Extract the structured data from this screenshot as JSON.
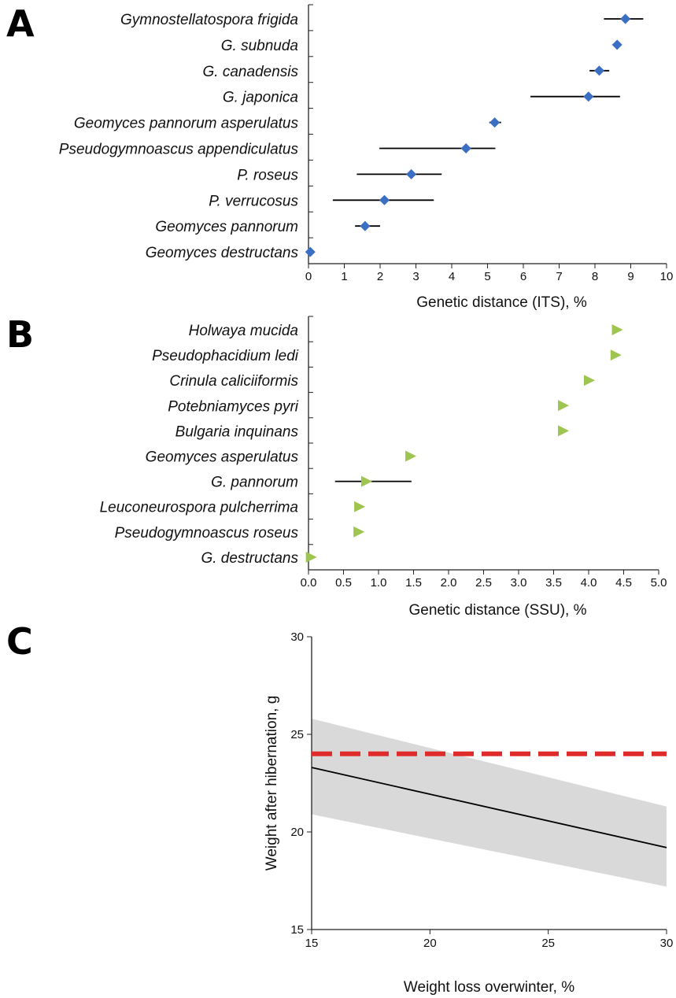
{
  "chart_data": [
    {
      "panel": "A",
      "type": "scatter",
      "marker": "diamond",
      "color": "#3a6fc4",
      "xlabel": "Genetic distance (ITS), %",
      "xlim": [
        0,
        10
      ],
      "xticks": [
        "0",
        "1",
        "2",
        "3",
        "4",
        "5",
        "6",
        "7",
        "8",
        "9",
        "10"
      ],
      "categories": [
        "Gymnostellatospora frigida",
        "G. subnuda",
        "G. canadensis",
        "G. japonica",
        "Geomyces pannorum asperulatus",
        "Pseudogymnoascus appendiculatus",
        "P. roseus",
        "P. verrucosus",
        "Geomyces pannorum",
        "Geomyces destructans"
      ],
      "values": [
        8.85,
        8.62,
        8.12,
        7.82,
        5.2,
        4.4,
        2.87,
        2.12,
        1.58,
        0.05
      ],
      "error_low": [
        8.25,
        null,
        7.85,
        6.2,
        5.05,
        1.98,
        1.35,
        0.68,
        1.3,
        null
      ],
      "error_high": [
        9.35,
        null,
        8.4,
        8.7,
        5.38,
        5.22,
        3.72,
        3.5,
        2.0,
        null
      ]
    },
    {
      "panel": "B",
      "type": "scatter",
      "marker": "triangle-right",
      "color": "#9ec54f",
      "xlabel": "Genetic distance (SSU), %",
      "xlim": [
        0,
        5
      ],
      "xticks": [
        "0.0",
        "0.5",
        "1.0",
        "1.5",
        "2.0",
        "2.5",
        "3.0",
        "3.5",
        "4.0",
        "4.5",
        "5.0"
      ],
      "categories": [
        "Holwaya mucida",
        "Pseudophacidium ledi",
        "Crinula caliciiformis",
        "Potebniamyces pyri",
        "Bulgaria inquinans",
        "Geomyces asperulatus",
        "G. pannorum",
        "Leuconeurospora pulcherrima",
        "Pseudogymnoascus roseus",
        "G. destructans"
      ],
      "values": [
        4.4,
        4.38,
        4.0,
        3.63,
        3.63,
        1.45,
        0.82,
        0.72,
        0.71,
        0.03
      ],
      "error_low": [
        null,
        null,
        null,
        null,
        null,
        null,
        0.38,
        null,
        null,
        null
      ],
      "error_high": [
        null,
        null,
        null,
        null,
        null,
        null,
        1.47,
        null,
        null,
        null
      ]
    },
    {
      "panel": "C",
      "type": "line",
      "xlabel": "Weight loss overwinter, %",
      "ylabel": "Weight after hibernation, g",
      "xlim": [
        15,
        30
      ],
      "ylim": [
        15,
        30
      ],
      "xticks": [
        "15",
        "20",
        "25",
        "30"
      ],
      "yticks": [
        "15",
        "20",
        "25",
        "30"
      ],
      "series": [
        {
          "style": "solid",
          "color": "#000000",
          "x": [
            15,
            30
          ],
          "y": [
            23.3,
            19.2
          ]
        },
        {
          "style": "dashed",
          "color": "#e02b2b",
          "x": [
            15,
            30
          ],
          "y": [
            24.0,
            24.0
          ]
        }
      ],
      "band": {
        "color": "#d9d9d9",
        "x": [
          15,
          30
        ],
        "upper": [
          25.8,
          21.3
        ],
        "lower": [
          20.9,
          17.2
        ]
      }
    }
  ]
}
